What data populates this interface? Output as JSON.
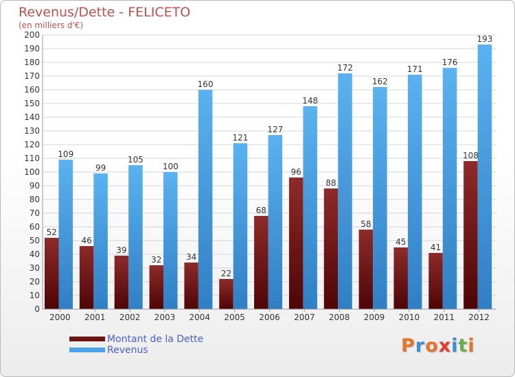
{
  "title": "Revenus/Dette - FELICETO",
  "subtitle": "(en milliers d'€)",
  "legend": {
    "debt_label": "Montant de la Dette",
    "revenue_label": "Revenus"
  },
  "logo": {
    "text": "Proxiti",
    "colors": [
      "#e8742a",
      "#3c8dd6",
      "#e8742a",
      "#e53b2c",
      "#3c8dd6",
      "#6ab04c",
      "#e8742a"
    ]
  },
  "colors": {
    "debt": "#7a1e1e",
    "revenue": "#4aa3e8",
    "title": "#c0504d",
    "legend_text": "#4a60d8"
  },
  "chart_data": {
    "type": "bar",
    "categories": [
      "2000",
      "2001",
      "2002",
      "2003",
      "2004",
      "2005",
      "2006",
      "2007",
      "2008",
      "2009",
      "2010",
      "2011",
      "2012"
    ],
    "series": [
      {
        "name": "Montant de la Dette",
        "values": [
          52,
          46,
          39,
          32,
          34,
          22,
          68,
          96,
          88,
          58,
          45,
          41,
          108
        ]
      },
      {
        "name": "Revenus",
        "values": [
          109,
          99,
          105,
          100,
          160,
          121,
          127,
          148,
          172,
          162,
          171,
          176,
          193
        ]
      }
    ],
    "ylim": [
      0,
      200
    ],
    "ytick_step": 10,
    "grid": true
  }
}
